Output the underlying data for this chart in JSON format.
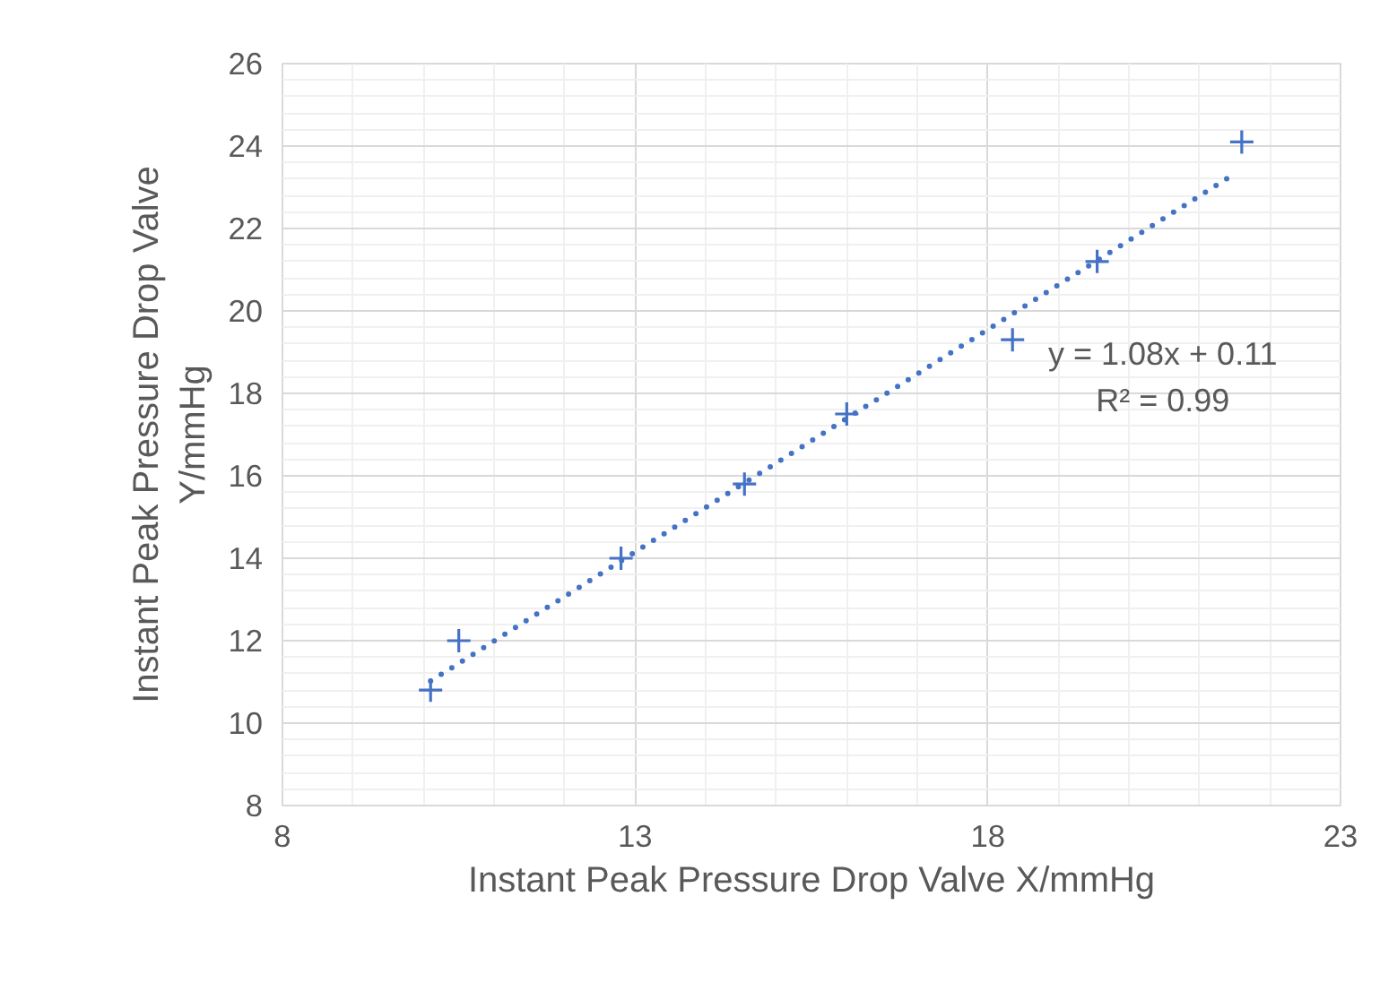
{
  "chart_data": {
    "type": "scatter",
    "xlabel": "Instant Peak Pressure Drop Valve X/mmHg",
    "ylabel": "Instant Peak Pressure Drop Valve Y/mmHg",
    "xlim": [
      8,
      23
    ],
    "xticks": [
      8,
      13,
      18,
      23
    ],
    "ylim": [
      8,
      26
    ],
    "yticks": [
      8,
      10,
      12,
      14,
      16,
      18,
      20,
      22,
      24,
      26
    ],
    "grid": true,
    "marker": "cross",
    "series": [
      {
        "color": "#4472c4",
        "x": [
          10.1,
          10.5,
          12.8,
          14.55,
          16.0,
          18.35,
          19.55,
          21.6
        ],
        "values": [
          10.8,
          12.0,
          14.0,
          15.8,
          17.5,
          19.3,
          21.2,
          24.1
        ]
      },
      {
        "type": "line",
        "color": "#4472c4",
        "line_style": "dotted",
        "marker": "none",
        "x": [
          10.1,
          21.5
        ],
        "values": [
          11.02,
          23.33
        ]
      }
    ],
    "annotations": [
      "y = 1.08x + 0.11",
      "R² = 0.99"
    ]
  }
}
